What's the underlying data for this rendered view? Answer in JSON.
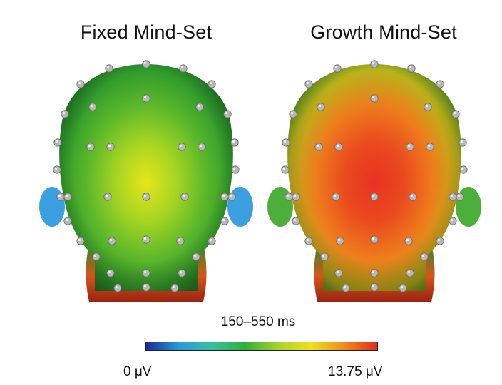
{
  "panels": [
    {
      "title": "Fixed Mind-Set",
      "scalp_colors": [
        "#e6e61a",
        "#a6d523",
        "#5cb82a",
        "#2f9a2c",
        "#1f7a24"
      ],
      "ear_color": "#3aa0e0",
      "neck_colors": [
        "#2f8a2a",
        "#d8541c",
        "#9a2410"
      ]
    },
    {
      "title": "Growth Mind-Set",
      "scalp_colors": [
        "#e83222",
        "#ea4a1e",
        "#ee7d1c",
        "#b9b41a",
        "#3e9a2a"
      ],
      "ear_color": "#4caf3a",
      "neck_colors": [
        "#2f8a2a",
        "#d8541c",
        "#9a2410"
      ]
    }
  ],
  "time_window": "150–550 ms",
  "colorbar": {
    "min_label": "0 μV",
    "max_label": "13.75 μV",
    "colors": [
      "#1a2a9a",
      "#2a9ad8",
      "#36c0a0",
      "#2fb03a",
      "#a8d22a",
      "#f0e020",
      "#f08a1a",
      "#e22a1a"
    ]
  },
  "electrode_color": "#b8b8b8"
}
